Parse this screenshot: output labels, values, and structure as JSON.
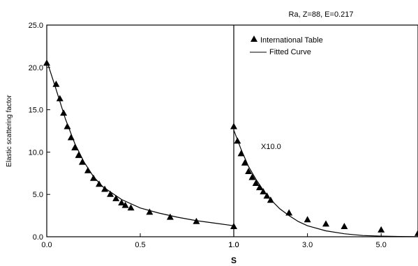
{
  "chart_data": {
    "type": "scatter",
    "title": "Ra, Z=88, E=0.217",
    "ylabel": "Elastic scattering factor",
    "xlabel": "S",
    "ylim": [
      0,
      25
    ],
    "y_ticks": [
      "0.0",
      "5.0",
      "10.0",
      "15.0",
      "20.0",
      "25.0"
    ],
    "legend": {
      "placement": "top-right",
      "entries": [
        {
          "label": "International Table",
          "marker": "triangle"
        },
        {
          "label": "Fitted Curve",
          "marker": "line"
        }
      ]
    },
    "annotation": "X10.0",
    "panels": [
      {
        "xlim": [
          0,
          1
        ],
        "x_ticks": [
          "0.0",
          "0.5",
          "1.0"
        ],
        "x_tick_values": [
          0,
          0.5,
          1.0
        ],
        "series": [
          {
            "name": "International Table",
            "kind": "markers",
            "x": [
              0.0,
              0.05,
              0.07,
              0.09,
              0.11,
              0.13,
              0.15,
              0.17,
              0.19,
              0.22,
              0.25,
              0.28,
              0.31,
              0.34,
              0.37,
              0.4,
              0.42,
              0.45,
              0.55,
              0.66,
              0.8,
              1.0
            ],
            "y": [
              20.5,
              18.0,
              16.3,
              14.6,
              13.0,
              11.7,
              10.5,
              9.6,
              8.8,
              7.8,
              6.9,
              6.2,
              5.6,
              5.0,
              4.5,
              4.0,
              3.7,
              3.4,
              2.9,
              2.3,
              1.8,
              1.2
            ]
          },
          {
            "name": "Fitted Curve",
            "kind": "line",
            "x": [
              0.0,
              0.05,
              0.1,
              0.15,
              0.2,
              0.25,
              0.3,
              0.4,
              0.5,
              0.6,
              0.7,
              0.8,
              0.9,
              1.0
            ],
            "y": [
              20.8,
              17.4,
              13.9,
              11.0,
              8.8,
              7.1,
              5.9,
              4.4,
              3.4,
              2.8,
              2.3,
              1.9,
              1.6,
              1.3
            ]
          }
        ]
      },
      {
        "xlim": [
          1.0,
          6.0
        ],
        "x_ticks": [
          "1.0",
          "3.0",
          "5.0"
        ],
        "x_tick_values": [
          1.0,
          3.0,
          5.0
        ],
        "series": [
          {
            "name": "International Table",
            "kind": "markers",
            "x": [
              1.0,
              1.1,
              1.2,
              1.3,
              1.4,
              1.5,
              1.6,
              1.7,
              1.8,
              1.9,
              2.0,
              2.5,
              3.0,
              3.5,
              4.0,
              5.0,
              6.0
            ],
            "y": [
              13.0,
              11.3,
              9.8,
              8.7,
              7.7,
              7.0,
              6.3,
              5.8,
              5.3,
              4.8,
              4.3,
              2.8,
              2.0,
              1.5,
              1.2,
              0.8,
              0.4
            ]
          },
          {
            "name": "Fitted Curve",
            "kind": "line",
            "x": [
              1.0,
              1.2,
              1.4,
              1.6,
              1.8,
              2.0,
              2.25,
              2.5,
              2.75,
              3.0,
              3.5,
              4.0,
              4.5,
              5.0,
              5.5,
              6.0
            ],
            "y": [
              12.6,
              10.3,
              8.3,
              6.8,
              5.5,
              4.4,
              3.3,
              2.5,
              1.8,
              1.3,
              0.7,
              0.35,
              0.15,
              0.07,
              0.03,
              0.01
            ]
          }
        ]
      }
    ]
  }
}
